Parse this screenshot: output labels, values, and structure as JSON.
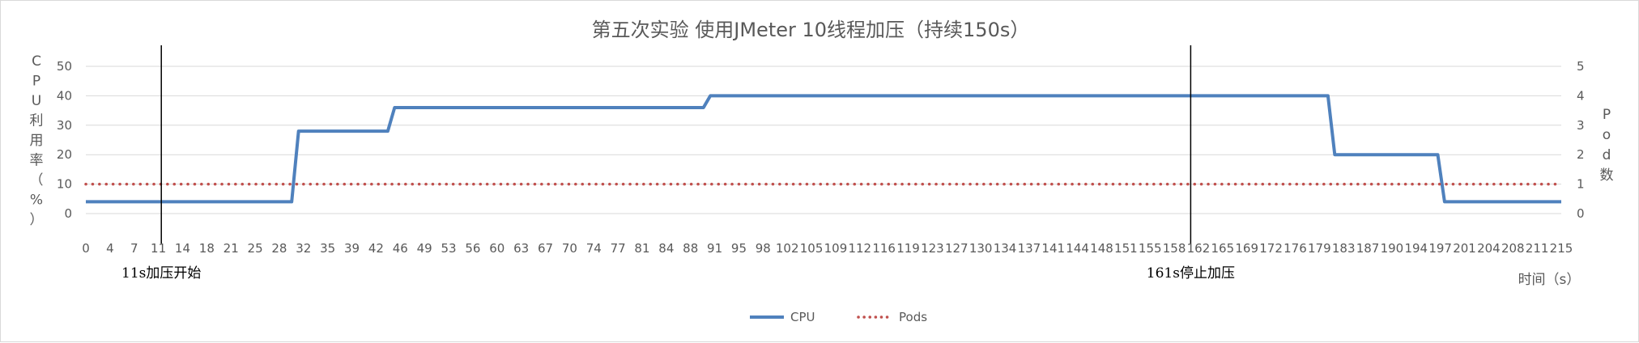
{
  "chart_data": {
    "type": "line",
    "title": "第五次实验 使用JMeter 10线程加压（持续150s）",
    "ylabel": "CPU利用率（%）",
    "y2label": "Pod数",
    "xlabel": "时间（s）",
    "ylim": [
      0,
      50
    ],
    "y2lim": [
      0,
      5
    ],
    "yticks": [
      0,
      10,
      20,
      30,
      40,
      50
    ],
    "y2ticks": [
      0,
      1,
      2,
      3,
      4,
      5
    ],
    "grid": true,
    "legend_position": "bottom",
    "x_categories": [
      "0",
      "4",
      "7",
      "11",
      "14",
      "18",
      "21",
      "25",
      "28",
      "32",
      "35",
      "39",
      "42",
      "46",
      "49",
      "53",
      "56",
      "60",
      "63",
      "67",
      "70",
      "74",
      "77",
      "81",
      "84",
      "88",
      "91",
      "95",
      "98",
      "102",
      "105",
      "109",
      "112",
      "116",
      "119",
      "123",
      "127",
      "130",
      "134",
      "137",
      "141",
      "144",
      "148",
      "151",
      "155",
      "158",
      "162",
      "165",
      "169",
      "172",
      "176",
      "179",
      "183",
      "187",
      "190",
      "194",
      "197",
      "201",
      "204",
      "208",
      "211",
      "215"
    ],
    "x_min": 0,
    "x_max": 215,
    "series": [
      {
        "name": "CPU",
        "axis": "left",
        "color": "#4f81bd",
        "style": "solid",
        "points": [
          [
            0,
            4
          ],
          [
            30,
            4
          ],
          [
            31,
            28
          ],
          [
            44,
            28
          ],
          [
            45,
            36
          ],
          [
            90,
            36
          ],
          [
            91,
            40
          ],
          [
            181,
            40
          ],
          [
            182,
            20
          ],
          [
            197,
            20
          ],
          [
            198,
            4
          ],
          [
            215,
            4
          ]
        ]
      },
      {
        "name": "Pods",
        "axis": "right",
        "color": "#c0504d",
        "style": "dotted",
        "points": [
          [
            0,
            1
          ],
          [
            215,
            1
          ]
        ]
      }
    ],
    "annotations": [
      {
        "x": 11,
        "label": "11s加压开始"
      },
      {
        "x": 161,
        "label": "161s停止加压"
      }
    ]
  }
}
